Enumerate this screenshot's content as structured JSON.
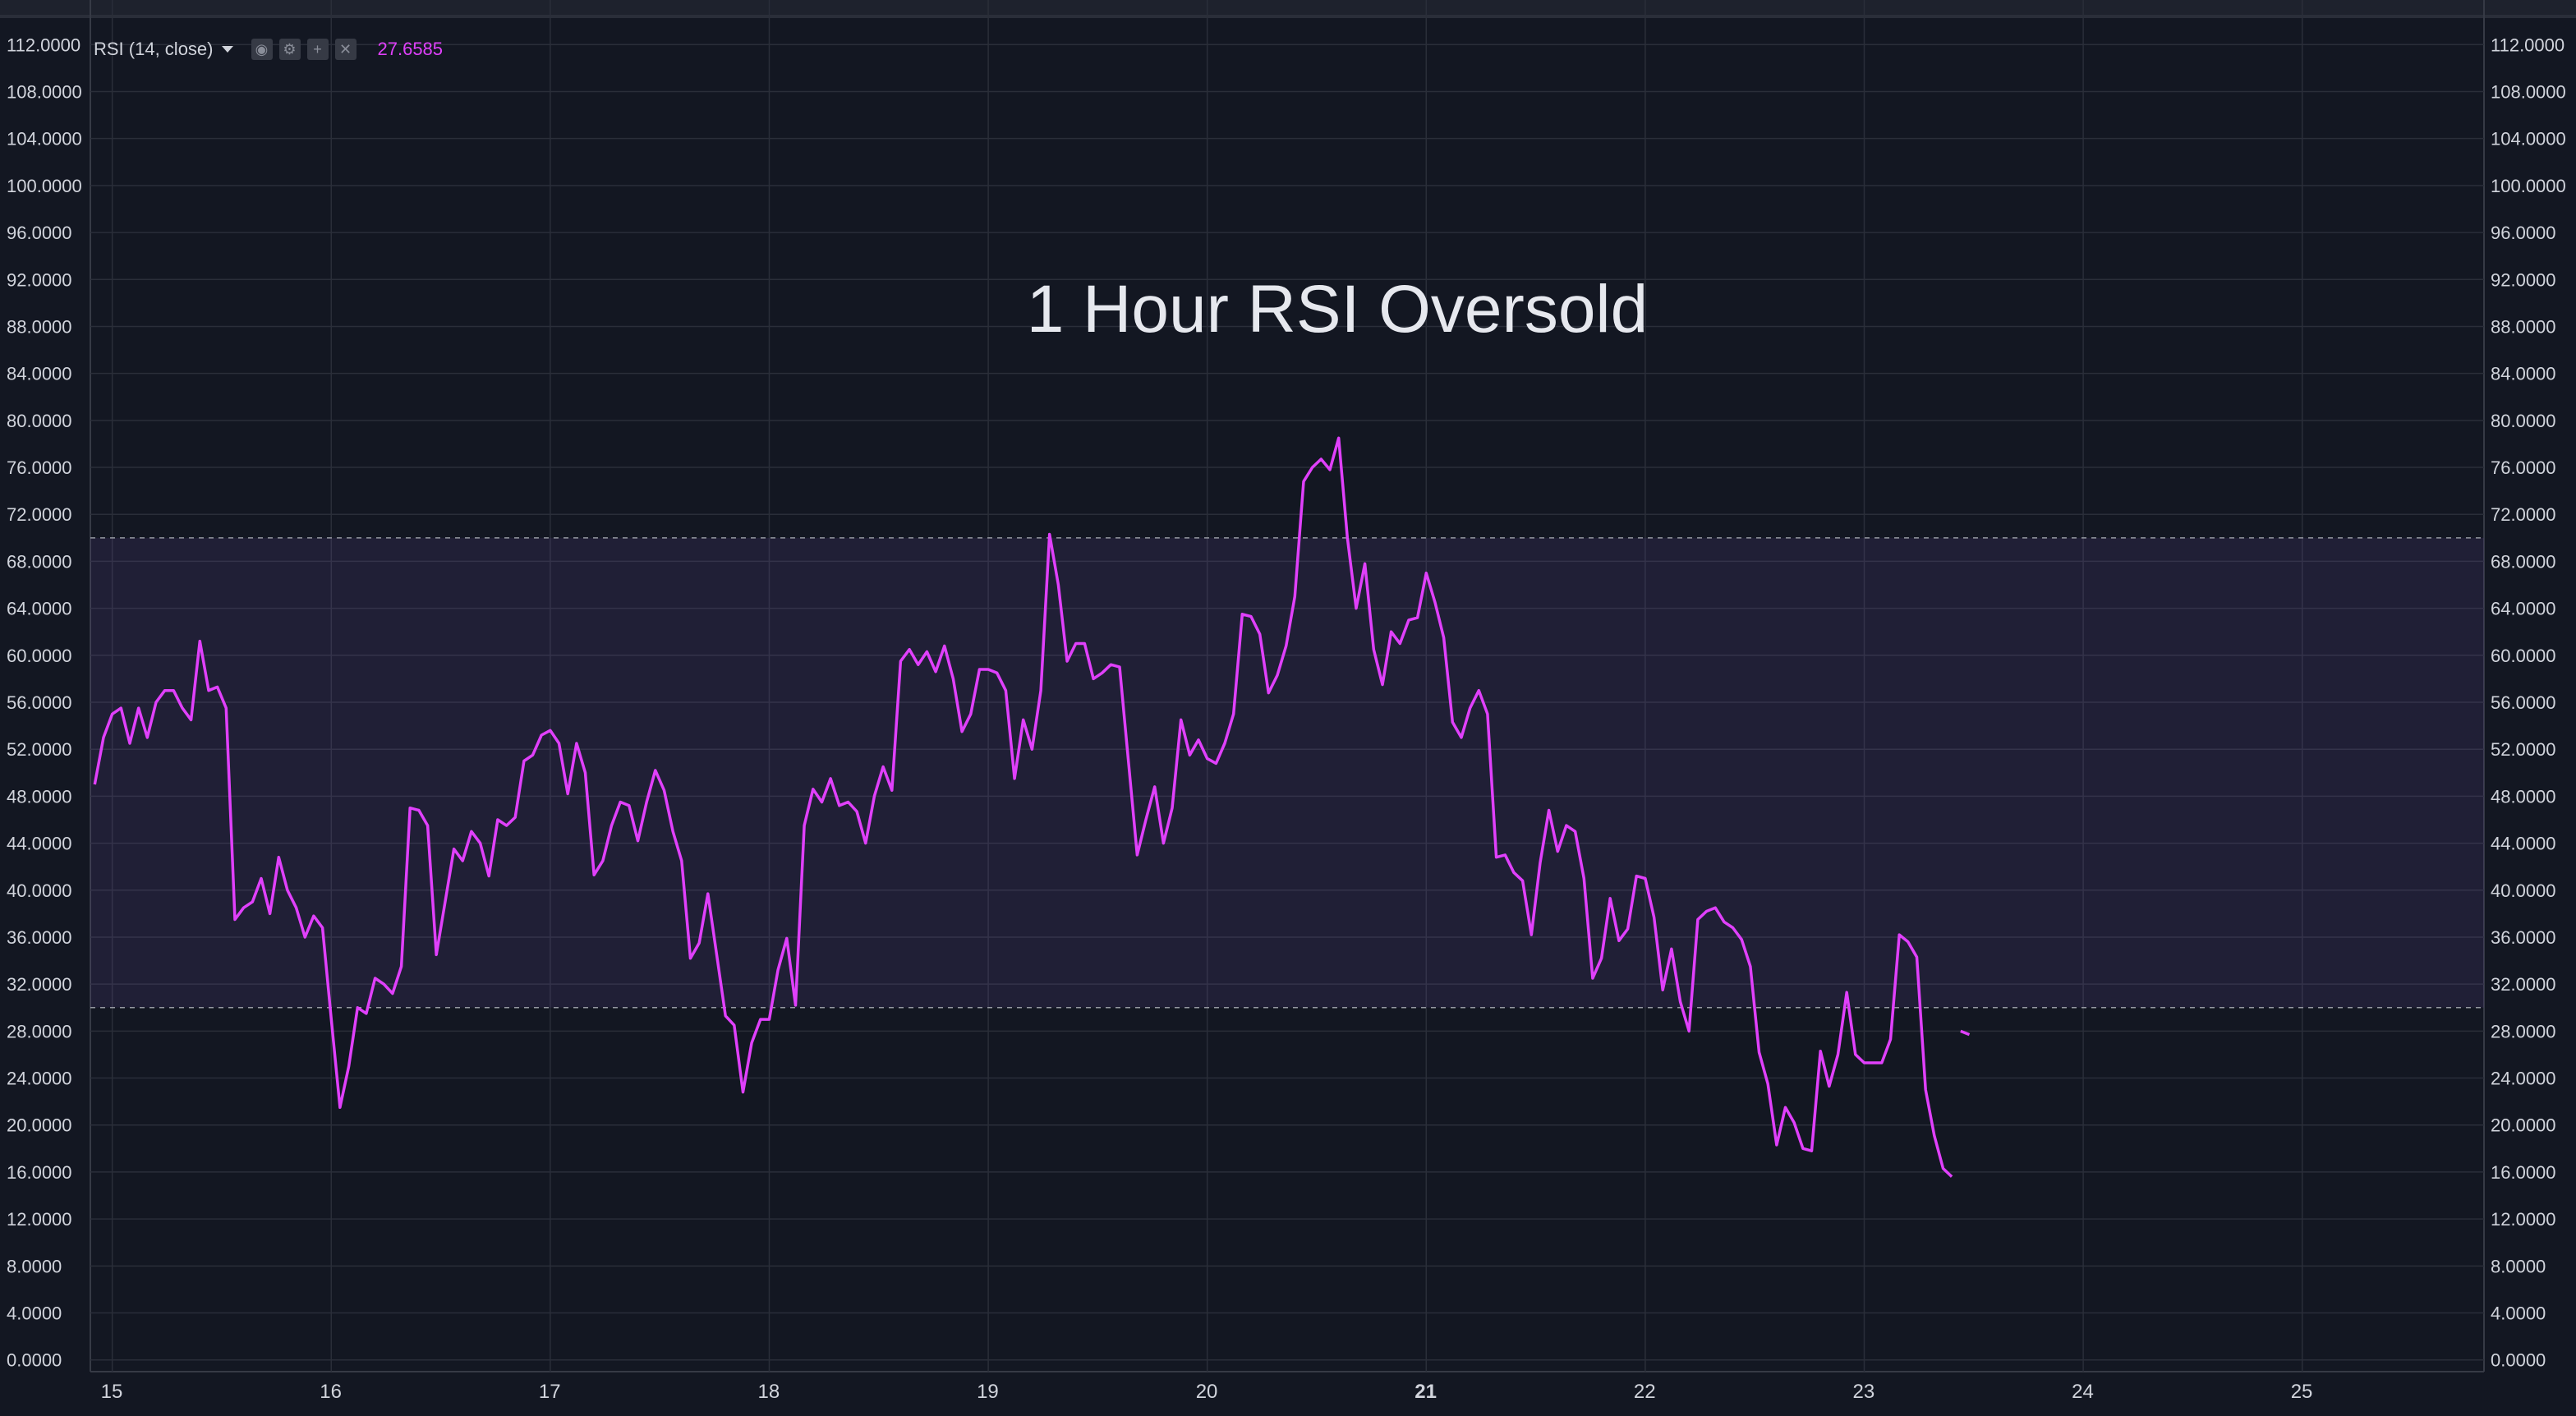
{
  "legend": {
    "study": "RSI (14, close)",
    "value": "27.6585"
  },
  "colors": {
    "background": "#131722",
    "grid": "#2a2e39",
    "rsi_line": "#e040fb",
    "band_fill": "#7e57c2",
    "axis_text": "#d1d4dc"
  },
  "icons": [
    "chevron-down-icon",
    "eye-icon",
    "gear-icon",
    "plus-icon",
    "close-icon"
  ],
  "chart_data": {
    "type": "line",
    "title": "1 Hour RSI Oversold",
    "x_tick_labels": [
      {
        "day": 15,
        "label": "15",
        "bold": false
      },
      {
        "day": 16,
        "label": "16",
        "bold": false
      },
      {
        "day": 17,
        "label": "17",
        "bold": false
      },
      {
        "day": 18,
        "label": "18",
        "bold": false
      },
      {
        "day": 19,
        "label": "19",
        "bold": false
      },
      {
        "day": 20,
        "label": "20",
        "bold": false
      },
      {
        "day": 21,
        "label": "21",
        "bold": true
      },
      {
        "day": 22,
        "label": "22",
        "bold": false
      },
      {
        "day": 23,
        "label": "23",
        "bold": false
      },
      {
        "day": 24,
        "label": "24",
        "bold": false
      },
      {
        "day": 25,
        "label": "25",
        "bold": false
      }
    ],
    "xlim": [
      14.9,
      25.83
    ],
    "ylim": [
      -1,
      113
    ],
    "y_ticks": [
      0,
      4,
      8,
      12,
      16,
      20,
      24,
      28,
      32,
      36,
      40,
      44,
      48,
      52,
      56,
      60,
      64,
      68,
      72,
      76,
      80,
      84,
      88,
      92,
      96,
      100,
      104,
      108,
      112
    ],
    "y_tick_labels": [
      "0.0000",
      "4.0000",
      "8.0000",
      "12.0000",
      "16.0000",
      "20.0000",
      "24.0000",
      "28.0000",
      "32.0000",
      "36.0000",
      "40.0000",
      "44.0000",
      "48.0000",
      "52.0000",
      "56.0000",
      "60.0000",
      "64.0000",
      "68.0000",
      "72.0000",
      "76.0000",
      "80.0000",
      "84.0000",
      "88.0000",
      "92.0000",
      "96.0000",
      "100.0000",
      "104.0000",
      "108.0000",
      "112.0000"
    ],
    "bands": {
      "upper": 70,
      "lower": 30
    },
    "grid": true,
    "series": [
      {
        "name": "RSI (14, close)",
        "points": [
          [
            14.92,
            49
          ],
          [
            14.96,
            53
          ],
          [
            15.0,
            55
          ],
          [
            15.04,
            55.5
          ],
          [
            15.08,
            52.5
          ],
          [
            15.12,
            55.5
          ],
          [
            15.16,
            53
          ],
          [
            15.2,
            56
          ],
          [
            15.24,
            57
          ],
          [
            15.28,
            57
          ],
          [
            15.32,
            55.5
          ],
          [
            15.36,
            54.5
          ],
          [
            15.4,
            61.2
          ],
          [
            15.44,
            57
          ],
          [
            15.48,
            57.3
          ],
          [
            15.52,
            55.5
          ],
          [
            15.56,
            37.5
          ],
          [
            15.6,
            38.5
          ],
          [
            15.64,
            39
          ],
          [
            15.68,
            41
          ],
          [
            15.72,
            38
          ],
          [
            15.76,
            42.8
          ],
          [
            15.8,
            40
          ],
          [
            15.84,
            38.5
          ],
          [
            15.88,
            36
          ],
          [
            15.92,
            37.8
          ],
          [
            15.96,
            36.8
          ],
          [
            16.0,
            29
          ],
          [
            16.04,
            21.5
          ],
          [
            16.08,
            25
          ],
          [
            16.12,
            30
          ],
          [
            16.16,
            29.5
          ],
          [
            16.2,
            32.5
          ],
          [
            16.24,
            32
          ],
          [
            16.28,
            31.2
          ],
          [
            16.32,
            33.5
          ],
          [
            16.36,
            47
          ],
          [
            16.4,
            46.8
          ],
          [
            16.44,
            45.5
          ],
          [
            16.48,
            34.5
          ],
          [
            16.52,
            39
          ],
          [
            16.56,
            43.5
          ],
          [
            16.6,
            42.5
          ],
          [
            16.64,
            45
          ],
          [
            16.68,
            44
          ],
          [
            16.72,
            41.2
          ],
          [
            16.76,
            46
          ],
          [
            16.8,
            45.5
          ],
          [
            16.84,
            46.2
          ],
          [
            16.88,
            51
          ],
          [
            16.92,
            51.5
          ],
          [
            16.96,
            53.2
          ],
          [
            17.0,
            53.6
          ],
          [
            17.04,
            52.5
          ],
          [
            17.08,
            48.2
          ],
          [
            17.12,
            52.5
          ],
          [
            17.16,
            50
          ],
          [
            17.2,
            41.3
          ],
          [
            17.24,
            42.5
          ],
          [
            17.28,
            45.5
          ],
          [
            17.32,
            47.5
          ],
          [
            17.36,
            47.2
          ],
          [
            17.4,
            44.2
          ],
          [
            17.44,
            47.5
          ],
          [
            17.48,
            50.2
          ],
          [
            17.52,
            48.5
          ],
          [
            17.56,
            45
          ],
          [
            17.6,
            42.5
          ],
          [
            17.64,
            34.2
          ],
          [
            17.68,
            35.5
          ],
          [
            17.72,
            39.7
          ],
          [
            17.76,
            34.5
          ],
          [
            17.8,
            29.3
          ],
          [
            17.84,
            28.5
          ],
          [
            17.88,
            22.8
          ],
          [
            17.92,
            27
          ],
          [
            17.96,
            29
          ],
          [
            18.0,
            29
          ],
          [
            18.04,
            33.2
          ],
          [
            18.08,
            35.9
          ],
          [
            18.12,
            30.2
          ],
          [
            18.16,
            45.5
          ],
          [
            18.2,
            48.6
          ],
          [
            18.24,
            47.5
          ],
          [
            18.28,
            49.5
          ],
          [
            18.32,
            47.2
          ],
          [
            18.36,
            47.5
          ],
          [
            18.4,
            46.7
          ],
          [
            18.44,
            44
          ],
          [
            18.48,
            48
          ],
          [
            18.52,
            50.5
          ],
          [
            18.56,
            48.5
          ],
          [
            18.6,
            59.5
          ],
          [
            18.64,
            60.5
          ],
          [
            18.68,
            59.2
          ],
          [
            18.72,
            60.3
          ],
          [
            18.76,
            58.6
          ],
          [
            18.8,
            60.8
          ],
          [
            18.84,
            58
          ],
          [
            18.88,
            53.5
          ],
          [
            18.92,
            55
          ],
          [
            18.96,
            58.8
          ],
          [
            19.0,
            58.8
          ],
          [
            19.04,
            58.5
          ],
          [
            19.08,
            57
          ],
          [
            19.12,
            49.5
          ],
          [
            19.16,
            54.5
          ],
          [
            19.2,
            52
          ],
          [
            19.24,
            57
          ],
          [
            19.28,
            70.3
          ],
          [
            19.32,
            66
          ],
          [
            19.36,
            59.5
          ],
          [
            19.4,
            61
          ],
          [
            19.44,
            61
          ],
          [
            19.48,
            58
          ],
          [
            19.52,
            58.5
          ],
          [
            19.56,
            59.2
          ],
          [
            19.6,
            59
          ],
          [
            19.64,
            51
          ],
          [
            19.68,
            43
          ],
          [
            19.72,
            46
          ],
          [
            19.76,
            48.8
          ],
          [
            19.8,
            44
          ],
          [
            19.84,
            47
          ],
          [
            19.88,
            54.5
          ],
          [
            19.92,
            51.5
          ],
          [
            19.96,
            52.8
          ],
          [
            20.0,
            51.2
          ],
          [
            20.04,
            50.8
          ],
          [
            20.08,
            52.5
          ],
          [
            20.12,
            55
          ],
          [
            20.16,
            63.5
          ],
          [
            20.2,
            63.3
          ],
          [
            20.24,
            61.8
          ],
          [
            20.28,
            56.8
          ],
          [
            20.32,
            58.3
          ],
          [
            20.36,
            60.8
          ],
          [
            20.4,
            65
          ],
          [
            20.44,
            74.8
          ],
          [
            20.48,
            76
          ],
          [
            20.52,
            76.7
          ],
          [
            20.56,
            75.8
          ],
          [
            20.6,
            78.5
          ],
          [
            20.64,
            70
          ],
          [
            20.68,
            64
          ],
          [
            20.72,
            67.8
          ],
          [
            20.76,
            60.5
          ],
          [
            20.8,
            57.5
          ],
          [
            20.84,
            62
          ],
          [
            20.88,
            61
          ],
          [
            20.92,
            63
          ],
          [
            20.96,
            63.2
          ],
          [
            21.0,
            67
          ],
          [
            21.04,
            64.5
          ],
          [
            21.08,
            61.5
          ],
          [
            21.12,
            54.3
          ],
          [
            21.16,
            53
          ],
          [
            21.2,
            55.5
          ],
          [
            21.24,
            57
          ],
          [
            21.28,
            55
          ],
          [
            21.32,
            42.8
          ],
          [
            21.36,
            43
          ],
          [
            21.4,
            41.5
          ],
          [
            21.44,
            40.8
          ],
          [
            21.48,
            36.2
          ],
          [
            21.52,
            42.3
          ],
          [
            21.56,
            46.8
          ],
          [
            21.6,
            43.3
          ],
          [
            21.64,
            45.5
          ],
          [
            21.68,
            45
          ],
          [
            21.72,
            41
          ],
          [
            21.76,
            32.5
          ],
          [
            21.8,
            34.2
          ],
          [
            21.84,
            39.3
          ],
          [
            21.88,
            35.7
          ],
          [
            21.92,
            36.7
          ],
          [
            21.96,
            41.2
          ],
          [
            22.0,
            41
          ],
          [
            22.04,
            37.7
          ],
          [
            22.08,
            31.5
          ],
          [
            22.12,
            35
          ],
          [
            22.16,
            30.5
          ],
          [
            22.2,
            28
          ],
          [
            22.24,
            37.5
          ],
          [
            22.28,
            38.2
          ],
          [
            22.32,
            38.5
          ],
          [
            22.36,
            37.3
          ],
          [
            22.4,
            36.8
          ],
          [
            22.44,
            35.8
          ],
          [
            22.48,
            33.5
          ],
          [
            22.52,
            26.2
          ],
          [
            22.56,
            23.5
          ],
          [
            22.6,
            18.3
          ],
          [
            22.64,
            21.5
          ],
          [
            22.68,
            20.2
          ],
          [
            22.72,
            18
          ],
          [
            22.76,
            17.8
          ],
          [
            22.8,
            26.3
          ],
          [
            22.84,
            23.3
          ],
          [
            22.88,
            26
          ],
          [
            22.92,
            31.3
          ],
          [
            22.96,
            26
          ],
          [
            23.0,
            25.3
          ],
          [
            23.04,
            25.3
          ],
          [
            23.08,
            25.3
          ],
          [
            23.12,
            27.3
          ],
          [
            23.16,
            36.2
          ],
          [
            23.2,
            35.6
          ],
          [
            23.24,
            34.3
          ],
          [
            23.28,
            23
          ],
          [
            23.32,
            19.1
          ],
          [
            23.36,
            16.3
          ],
          [
            23.4,
            15.6
          ]
        ]
      },
      {
        "name": "RSI (14, close)",
        "points": [
          [
            23.44,
            28
          ],
          [
            23.48,
            27.7
          ]
        ]
      }
    ]
  }
}
